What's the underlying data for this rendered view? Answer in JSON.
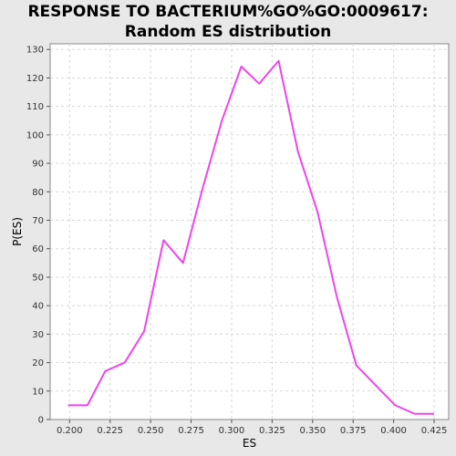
{
  "chart_data": {
    "type": "line",
    "title_line1": "RESPONSE TO BACTERIUM%GO%GO:0009617:",
    "title_line2": "Random ES distribution",
    "xlabel": "ES",
    "ylabel": "P(ES)",
    "xlim": [
      0.188,
      0.434
    ],
    "ylim": [
      0,
      132
    ],
    "x_ticks": [
      "0.200",
      "0.225",
      "0.250",
      "0.275",
      "0.300",
      "0.325",
      "0.350",
      "0.375",
      "0.400",
      "0.425"
    ],
    "y_ticks": [
      "0",
      "10",
      "20",
      "30",
      "40",
      "50",
      "60",
      "70",
      "80",
      "90",
      "100",
      "110",
      "120",
      "130"
    ],
    "grid": true,
    "series": [
      {
        "color": "#ee44ee",
        "x": [
          0.199,
          0.211,
          0.222,
          0.234,
          0.246,
          0.258,
          0.27,
          0.282,
          0.294,
          0.306,
          0.317,
          0.329,
          0.341,
          0.353,
          0.365,
          0.377,
          0.389,
          0.401,
          0.413,
          0.425
        ],
        "y": [
          5,
          5,
          17,
          20,
          31,
          63,
          55,
          81,
          105,
          124,
          118,
          126,
          94,
          73,
          43,
          19,
          12,
          5,
          2,
          2
        ]
      }
    ]
  }
}
